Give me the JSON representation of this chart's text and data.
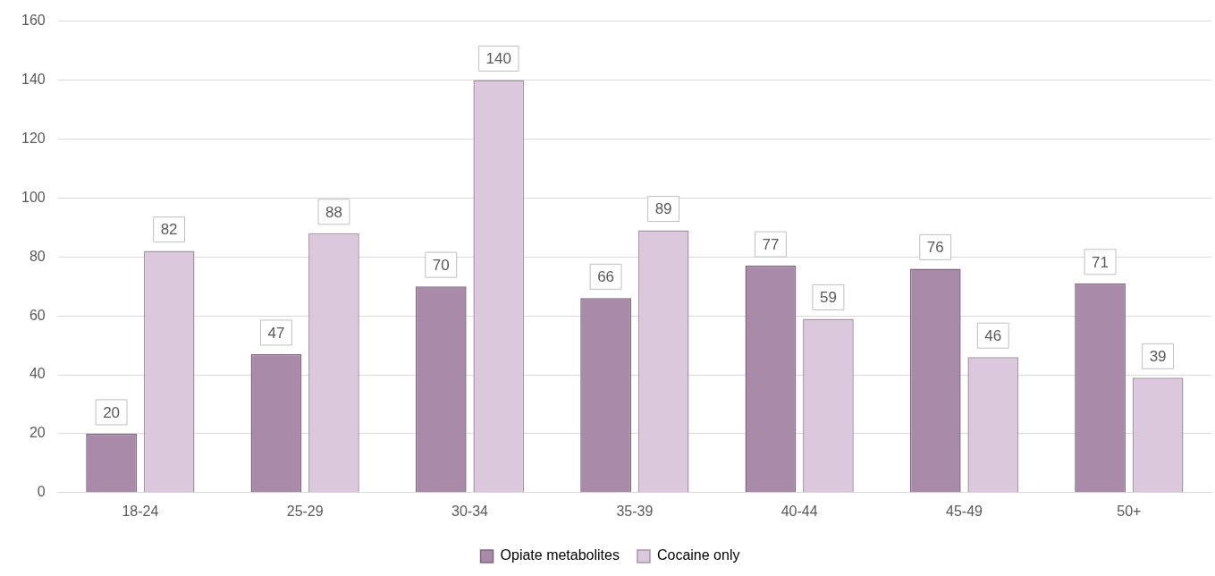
{
  "chart_data": {
    "type": "bar",
    "categories": [
      "18-24",
      "25-29",
      "30-34",
      "35-39",
      "40-44",
      "45-49",
      "50+"
    ],
    "series": [
      {
        "name": "Opiate metabolites",
        "color": "#a98aa8",
        "values": [
          20,
          47,
          70,
          66,
          77,
          76,
          71
        ]
      },
      {
        "name": "Cocaine only",
        "color": "#dcc8dc",
        "values": [
          82,
          88,
          140,
          89,
          59,
          46,
          39
        ]
      }
    ],
    "ylim": [
      0,
      160
    ],
    "yticks": [
      0,
      20,
      40,
      60,
      80,
      100,
      120,
      140,
      160
    ],
    "grid": "y",
    "legend": "bottom",
    "data_labels": true
  }
}
